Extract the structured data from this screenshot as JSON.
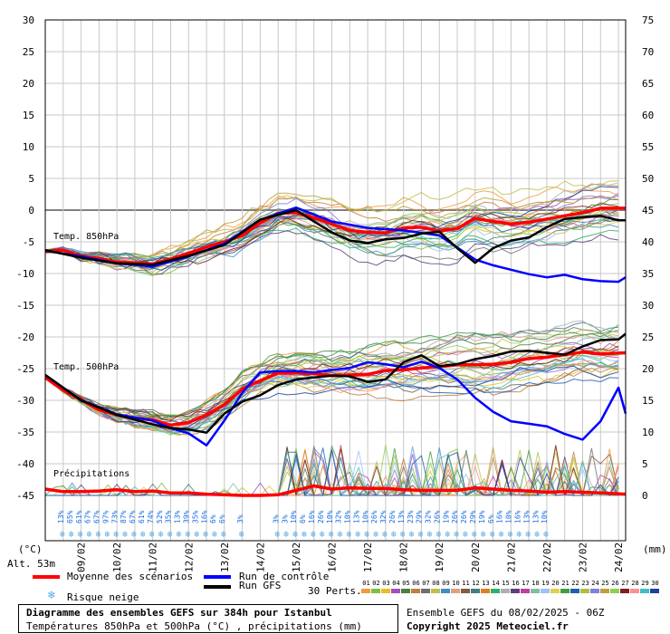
{
  "chart_data": {
    "type": "line",
    "title": "Diagramme des ensembles GEFS sur 384h pour Istanbul",
    "subtitle": "Températures 850hPa et 500hPa (°C) , précipitations (mm)",
    "left_axis": {
      "unit_label": "(°C)",
      "ticks": [
        30,
        25,
        20,
        15,
        10,
        5,
        0,
        -5,
        -10,
        -15,
        -20,
        -25,
        -30,
        -35,
        -40,
        -45
      ],
      "range": [
        -45,
        30
      ]
    },
    "right_axis": {
      "unit_label": "(mm)",
      "ticks": [
        75,
        70,
        65,
        60,
        55,
        50,
        45,
        40,
        35,
        30,
        25,
        20,
        15,
        10,
        5,
        0
      ],
      "range": [
        0,
        75
      ]
    },
    "x_tick_labels": [
      "09/02",
      "10/02",
      "11/02",
      "12/02",
      "13/02",
      "14/02",
      "15/02",
      "16/02",
      "17/02",
      "18/02",
      "19/02",
      "20/02",
      "21/02",
      "22/02",
      "23/02",
      "24/02"
    ],
    "x_range_days": [
      0,
      16.2
    ],
    "section_labels": [
      "Temp. 850hPa",
      "Temp. 500hPa",
      "Précipitations"
    ],
    "altitude": "Alt. 53m",
    "snow_risk_pct": [
      "13%",
      "65%",
      "61%",
      "67%",
      "67%",
      "97%",
      "73%",
      "87%",
      "67%",
      "61%",
      "74%",
      "52%",
      "35%",
      "13%",
      "39%",
      "35%",
      "16%",
      "6%",
      "6%",
      "",
      "3%",
      "",
      "",
      "",
      "3%",
      "3%",
      "10%",
      "6%",
      "16%",
      "26%",
      "10%",
      "32%",
      "10%",
      "13%",
      "10%",
      "26%",
      "32%",
      "26%",
      "13%",
      "23%",
      "29%",
      "32%",
      "26%",
      "19%",
      "26%",
      "26%",
      "29%",
      "19%",
      "6%",
      "16%",
      "10%",
      "16%",
      "13%",
      "13%",
      "10%"
    ],
    "series": [
      {
        "name": "Moyenne des scénarios",
        "group": "850hPa",
        "color": "#ff0000",
        "x": [
          0,
          0.5,
          1,
          1.5,
          2,
          2.5,
          3,
          3.5,
          4,
          4.5,
          5,
          5.5,
          6,
          6.5,
          7,
          7.5,
          8,
          8.5,
          9,
          9.5,
          10,
          10.5,
          11,
          11.5,
          12,
          12.5,
          13,
          13.5,
          14,
          14.5,
          15,
          15.5,
          16.2
        ],
        "y": [
          -6.5,
          -6.3,
          -7.3,
          -7.6,
          -8.2,
          -8.3,
          -8.5,
          -7.7,
          -6.8,
          -5.8,
          -5.0,
          -4.0,
          -2.0,
          -0.5,
          -0.4,
          -1.2,
          -2.2,
          -3.2,
          -3.5,
          -3.6,
          -2.8,
          -2.7,
          -3.3,
          -2.9,
          -1.3,
          -1.8,
          -2.2,
          -1.9,
          -1.4,
          -0.9,
          -0.4,
          0.3,
          0.3
        ]
      },
      {
        "name": "Run de contrôle",
        "group": "850hPa",
        "color": "#0000ff",
        "x": [
          0,
          1,
          2,
          3,
          4,
          5,
          6,
          7,
          8,
          9,
          10,
          11,
          12,
          12.5,
          13,
          13.5,
          14,
          14.5,
          15,
          15.5,
          16,
          16.2
        ],
        "y": [
          -6.4,
          -7.3,
          -8.4,
          -8.9,
          -7.3,
          -5.3,
          -1.5,
          0.4,
          -1.8,
          -2.8,
          -3.2,
          -4.0,
          -7.8,
          -8.7,
          -9.4,
          -10.1,
          -10.6,
          -10.2,
          -10.9,
          -11.2,
          -11.3,
          -10.6
        ]
      },
      {
        "name": "Run GFS",
        "group": "850hPa",
        "color": "#000000",
        "x": [
          0,
          1,
          2,
          3,
          4,
          5,
          6,
          7,
          7.5,
          8,
          8.5,
          9,
          9.5,
          10,
          10.5,
          11,
          11.5,
          12,
          12.5,
          13,
          13.5,
          14,
          14.5,
          15,
          15.5,
          16,
          16.2
        ],
        "y": [
          -6.3,
          -7.5,
          -8.4,
          -8.6,
          -7.2,
          -5.5,
          -1.5,
          0.0,
          -1.8,
          -3.5,
          -4.8,
          -5.2,
          -4.6,
          -4.4,
          -3.7,
          -3.4,
          -6.0,
          -8.3,
          -6.0,
          -4.8,
          -4.3,
          -2.7,
          -1.4,
          -1.1,
          -0.9,
          -1.6,
          -1.6
        ]
      },
      {
        "name": "Moyenne des scénarios",
        "group": "500hPa",
        "color": "#ff0000",
        "x": [
          0,
          0.5,
          1,
          1.5,
          2,
          2.5,
          3,
          3.5,
          4,
          4.5,
          5,
          5.5,
          6,
          6.5,
          7,
          7.5,
          8,
          8.5,
          9,
          9.5,
          10,
          10.5,
          11,
          11.5,
          12,
          12.5,
          13,
          13.5,
          14,
          14.5,
          15,
          15.5,
          16.2
        ],
        "y": [
          -26.4,
          -28.4,
          -29.9,
          -31.5,
          -32.3,
          -32.8,
          -33.1,
          -33.9,
          -33.5,
          -32.3,
          -30.7,
          -28.2,
          -26.9,
          -25.7,
          -25.7,
          -25.8,
          -26.1,
          -26.0,
          -25.9,
          -25.3,
          -25.2,
          -24.9,
          -24.7,
          -24.4,
          -24.4,
          -24.3,
          -24.0,
          -23.4,
          -23.2,
          -22.8,
          -22.4,
          -22.7,
          -22.5
        ]
      },
      {
        "name": "Run de contrôle",
        "group": "500hPa",
        "color": "#0000ff",
        "x": [
          0,
          1,
          2,
          3,
          3.5,
          4,
          4.5,
          5,
          5.5,
          6,
          6.5,
          7,
          7.5,
          8,
          8.5,
          9,
          9.5,
          10,
          10.5,
          11,
          11.5,
          12,
          12.5,
          13,
          13.5,
          14,
          14.5,
          15,
          15.5,
          16,
          16.2
        ],
        "y": [
          -26.0,
          -30.0,
          -32.2,
          -33.2,
          -34.4,
          -35.2,
          -37.1,
          -33.2,
          -28.8,
          -25.6,
          -25.4,
          -25.4,
          -25.6,
          -25.2,
          -24.9,
          -24.0,
          -24.3,
          -24.8,
          -23.9,
          -24.9,
          -26.7,
          -29.6,
          -31.8,
          -33.3,
          -33.7,
          -34.1,
          -35.3,
          -36.2,
          -33.3,
          -28.0,
          -32.1
        ]
      },
      {
        "name": "Run GFS",
        "group": "500hPa",
        "color": "#000000",
        "x": [
          0,
          1,
          2,
          3,
          3.5,
          4,
          4.5,
          5,
          5.5,
          6,
          6.5,
          7,
          7.5,
          8,
          8.5,
          9,
          9.5,
          10,
          10.5,
          11,
          11.5,
          12,
          12.5,
          13,
          13.5,
          14,
          14.5,
          15,
          15.5,
          16,
          16.2
        ],
        "y": [
          -26.0,
          -30.0,
          -32.3,
          -33.8,
          -34.4,
          -34.6,
          -35.1,
          -32.1,
          -30.2,
          -29.2,
          -27.6,
          -26.7,
          -26.4,
          -26.1,
          -26.2,
          -27.1,
          -26.7,
          -24.0,
          -22.9,
          -24.6,
          -24.3,
          -23.5,
          -23.0,
          -22.3,
          -22.2,
          -22.5,
          -22.8,
          -21.5,
          -20.5,
          -20.4,
          -19.5
        ]
      },
      {
        "name": "Moyenne des scénarios",
        "group": "Précipitations",
        "color": "#ff0000",
        "x": [
          0,
          0.5,
          1,
          1.5,
          2,
          2.5,
          3,
          3.5,
          4,
          4.5,
          5,
          5.5,
          6,
          6.5,
          7,
          7.5,
          8,
          8.5,
          9,
          9.5,
          10,
          10.5,
          11,
          11.5,
          12,
          12.5,
          13,
          13.5,
          14,
          14.5,
          15,
          15.5,
          16.2
        ],
        "y": [
          1.0,
          0.6,
          0.6,
          0.7,
          0.9,
          0.6,
          0.7,
          0.4,
          0.4,
          0.2,
          0.1,
          0.0,
          0.0,
          0.1,
          0.8,
          1.5,
          1.0,
          1.2,
          1.1,
          1.1,
          0.9,
          0.8,
          0.8,
          0.8,
          1.2,
          1.0,
          0.8,
          0.7,
          0.5,
          0.6,
          0.5,
          0.4,
          0.2
        ]
      }
    ],
    "grid": true
  },
  "legend": {
    "mean_label": "Moyenne des scénarios",
    "control_label": "Run de contrôle",
    "gfs_label": "Run GFS",
    "snow_label": "Risque neige",
    "perts_label": "30 Perts.",
    "perturbation_numbers": [
      "01",
      "02",
      "03",
      "04",
      "05",
      "06",
      "07",
      "08",
      "09",
      "10",
      "11",
      "12",
      "13",
      "14",
      "15",
      "16",
      "17",
      "18",
      "19",
      "20",
      "21",
      "22",
      "23",
      "24",
      "25",
      "26",
      "27",
      "28",
      "29",
      "30"
    ],
    "perturbation_colors": [
      "#f09b3c",
      "#7fbf3f",
      "#e8c020",
      "#9f4fbf",
      "#4c7f3f",
      "#bf7f3f",
      "#6f6f6f",
      "#bfbf4f",
      "#3f8fbf",
      "#dfa07f",
      "#7f5f3f",
      "#3f7f7f",
      "#e07f1f",
      "#2faf6f",
      "#afafaf",
      "#5f3f7f",
      "#bf3f9f",
      "#7fbf9f",
      "#9fbfff",
      "#e0d04f",
      "#3f9f3f",
      "#1f5faf",
      "#afbf3f",
      "#7f7fdf",
      "#bf9f3f",
      "#8fcf4f",
      "#7f1f1f",
      "#ff8f8f",
      "#3fbfbf",
      "#1f3f9f"
    ]
  },
  "footer": {
    "title": "Diagramme des ensembles GEFS sur 384h pour Istanbul",
    "subtitle": "Températures 850hPa et 500hPa (°C) , précipitations (mm)",
    "run_info": "Ensemble GEFS du 08/02/2025 - 06Z",
    "copyright": "Copyright 2025 Meteociel.fr"
  },
  "colors": {
    "mean": "#ff0000",
    "control": "#0000ff",
    "gfs": "#000000",
    "grid": "#c8c8c8",
    "snow": "#5aa9e6"
  }
}
